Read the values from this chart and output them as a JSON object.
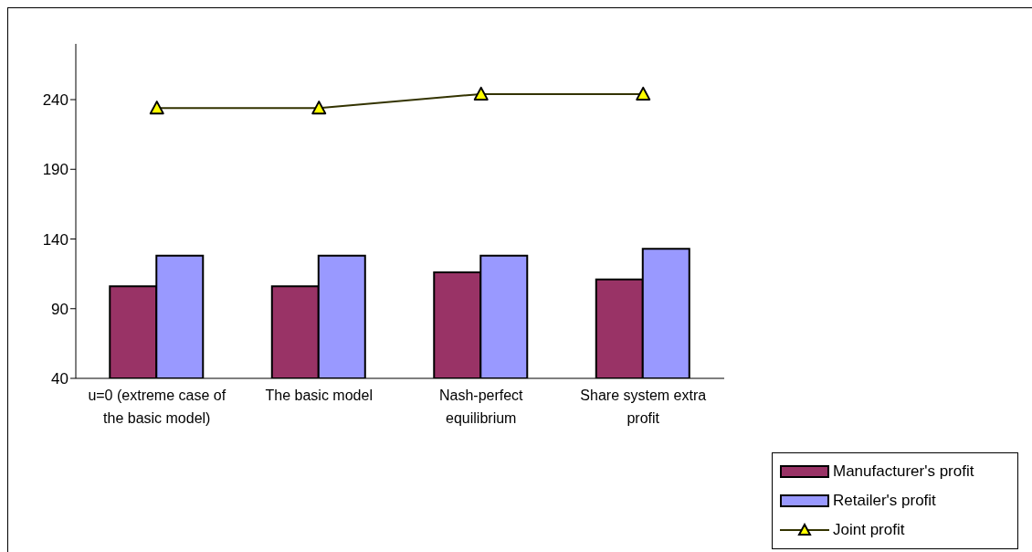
{
  "chart_data": {
    "type": "bar",
    "categories": [
      "u=0 (extreme case of the basic model)",
      "The basic model",
      "Nash-perfect equilibrium",
      "Share system extra profit"
    ],
    "series": [
      {
        "name": "Manufacturer's profit",
        "color": "#993366",
        "values": [
          106,
          106,
          116,
          111
        ]
      },
      {
        "name": "Retailer's profit",
        "color": "#9999ff",
        "values": [
          128,
          128,
          128,
          133
        ]
      },
      {
        "name": "Joint profit",
        "type": "line",
        "color": "#333300",
        "marker": "triangle",
        "values": [
          234,
          234,
          244,
          244
        ]
      }
    ],
    "ylim": [
      40,
      280
    ],
    "yticks": [
      40,
      90,
      140,
      190,
      240
    ],
    "grid": false,
    "legend": "bottom right"
  }
}
